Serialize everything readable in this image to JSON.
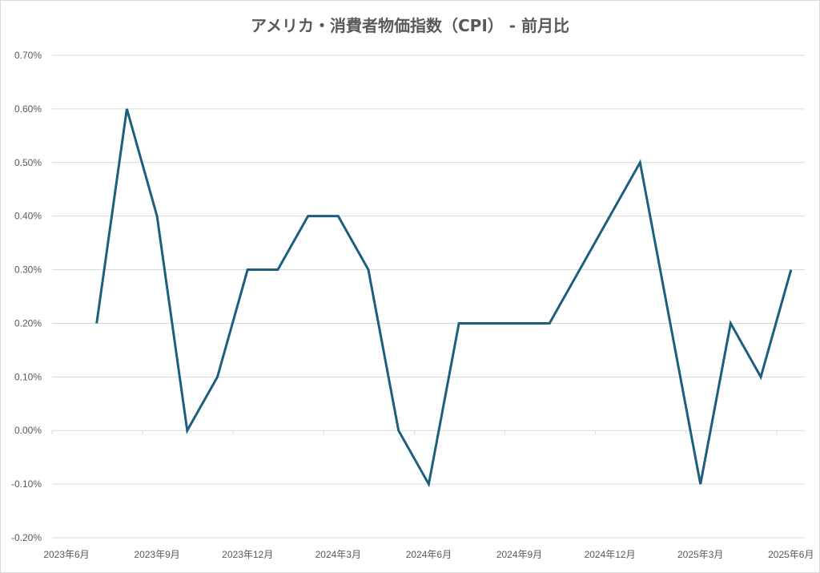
{
  "chart_data": {
    "type": "line",
    "title": "アメリカ・消費者物価指数（CPI） - 前月比",
    "xlabel": "",
    "ylabel": "",
    "ylim": [
      -0.2,
      0.7
    ],
    "y_ticks": [
      "0.70%",
      "0.60%",
      "0.50%",
      "0.40%",
      "0.30%",
      "0.20%",
      "0.10%",
      "0.00%",
      "-0.10%",
      "-0.20%"
    ],
    "x_ticks": [
      "2023年6月",
      "2023年9月",
      "2023年12月",
      "2024年3月",
      "2024年6月",
      "2024年9月",
      "2024年12月",
      "2025年3月",
      "2025年6月"
    ],
    "grid": true,
    "legend": "none",
    "color": "#1b5e7f",
    "x": [
      "2023-07",
      "2023-08",
      "2023-09",
      "2023-10",
      "2023-11",
      "2023-12",
      "2024-01",
      "2024-02",
      "2024-03",
      "2024-04",
      "2024-05",
      "2024-06",
      "2024-07",
      "2024-08",
      "2024-09",
      "2024-10",
      "2024-11",
      "2024-12",
      "2025-01",
      "2025-02",
      "2025-03",
      "2025-04",
      "2025-05",
      "2025-06"
    ],
    "series": [
      {
        "values": [
          0.2,
          0.6,
          0.4,
          0.0,
          0.1,
          0.3,
          0.3,
          0.4,
          0.4,
          0.3,
          0.0,
          -0.1,
          0.2,
          0.2,
          0.2,
          0.2,
          0.3,
          0.4,
          0.5,
          0.2,
          -0.1,
          0.2,
          0.1,
          0.3
        ]
      }
    ]
  }
}
